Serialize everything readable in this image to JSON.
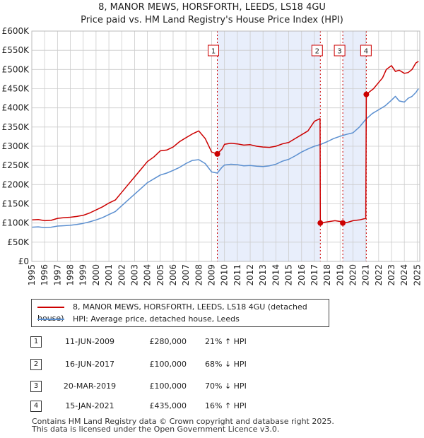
{
  "header": {
    "title_line1": "8, MANOR MEWS, HORSFORTH, LEEDS, LS18 4GU",
    "title_line2": "Price paid vs. HM Land Registry's House Price Index (HPI)"
  },
  "colors": {
    "property": "#cc0000",
    "hpi": "#5b8fd0",
    "shade": "#e8eefb"
  },
  "chart_data": {
    "type": "line",
    "xlim": [
      1995,
      2025.2
    ],
    "ylim": [
      0,
      600000
    ],
    "x_ticks": [
      "1995",
      "1996",
      "1997",
      "1998",
      "1999",
      "2000",
      "2001",
      "2002",
      "2003",
      "2004",
      "2005",
      "2006",
      "2007",
      "2008",
      "2009",
      "2010",
      "2011",
      "2012",
      "2013",
      "2014",
      "2015",
      "2016",
      "2017",
      "2018",
      "2019",
      "2020",
      "2021",
      "2022",
      "2023",
      "2024",
      "2025"
    ],
    "y_ticks": [
      {
        "value": 0,
        "label": "£0"
      },
      {
        "value": 50000,
        "label": "£50K"
      },
      {
        "value": 100000,
        "label": "£100K"
      },
      {
        "value": 150000,
        "label": "£150K"
      },
      {
        "value": 200000,
        "label": "£200K"
      },
      {
        "value": 250000,
        "label": "£250K"
      },
      {
        "value": 300000,
        "label": "£300K"
      },
      {
        "value": 350000,
        "label": "£350K"
      },
      {
        "value": 400000,
        "label": "£400K"
      },
      {
        "value": 450000,
        "label": "£450K"
      },
      {
        "value": 500000,
        "label": "£500K"
      },
      {
        "value": 550000,
        "label": "£550K"
      },
      {
        "value": 600000,
        "label": "£600K"
      }
    ],
    "shaded_spans": [
      [
        2009.44,
        2017.46
      ],
      [
        2019.21,
        2021.04
      ]
    ],
    "series": [
      {
        "name": "8, MANOR MEWS, HORSFORTH, LEEDS, LS18 4GU (detached house)",
        "color": "#cc0000",
        "x": [
          1995.0,
          1995.5,
          1996.0,
          1996.5,
          1997.0,
          1997.5,
          1998.0,
          1998.5,
          1999.0,
          1999.5,
          2000.0,
          2000.5,
          2001.0,
          2001.5,
          2002.0,
          2002.5,
          2003.0,
          2003.5,
          2004.0,
          2004.5,
          2005.0,
          2005.5,
          2006.0,
          2006.5,
          2007.0,
          2007.5,
          2008.0,
          2008.5,
          2009.0,
          2009.44,
          2009.8,
          2010.0,
          2010.5,
          2011.0,
          2011.5,
          2012.0,
          2012.5,
          2013.0,
          2013.5,
          2014.0,
          2014.5,
          2015.0,
          2015.5,
          2016.0,
          2016.5,
          2017.0,
          2017.44,
          2017.46,
          2017.8,
          2018.2,
          2018.6,
          2019.0,
          2019.21,
          2019.6,
          2020.0,
          2020.5,
          2021.0,
          2021.04,
          2021.3,
          2021.6,
          2022.0,
          2022.3,
          2022.6,
          2023.0,
          2023.3,
          2023.6,
          2024.0,
          2024.3,
          2024.6,
          2024.9,
          2025.1
        ],
        "y": [
          108000,
          109000,
          106000,
          107000,
          112000,
          114000,
          115000,
          117000,
          120000,
          126000,
          134000,
          142000,
          152000,
          160000,
          180000,
          200000,
          220000,
          240000,
          260000,
          272000,
          288000,
          290000,
          298000,
          312000,
          322000,
          332000,
          340000,
          320000,
          285000,
          280000,
          292000,
          305000,
          308000,
          306000,
          303000,
          304000,
          300000,
          298000,
          297000,
          300000,
          306000,
          310000,
          320000,
          330000,
          340000,
          365000,
          372000,
          100000,
          102000,
          104000,
          106000,
          104000,
          100000,
          102000,
          106000,
          108000,
          112000,
          435000,
          442000,
          450000,
          466000,
          478000,
          500000,
          510000,
          495000,
          498000,
          490000,
          492000,
          500000,
          517000,
          521000
        ]
      },
      {
        "name": "HPI: Average price, detached house, Leeds",
        "color": "#5b8fd0",
        "x": [
          1995.0,
          1995.5,
          1996.0,
          1996.5,
          1997.0,
          1997.5,
          1998.0,
          1998.5,
          1999.0,
          1999.5,
          2000.0,
          2000.5,
          2001.0,
          2001.5,
          2002.0,
          2002.5,
          2003.0,
          2003.5,
          2004.0,
          2004.5,
          2005.0,
          2005.5,
          2006.0,
          2006.5,
          2007.0,
          2007.5,
          2008.0,
          2008.5,
          2009.0,
          2009.44,
          2009.8,
          2010.0,
          2010.5,
          2011.0,
          2011.5,
          2012.0,
          2012.5,
          2013.0,
          2013.5,
          2014.0,
          2014.5,
          2015.0,
          2015.5,
          2016.0,
          2016.5,
          2017.0,
          2017.5,
          2018.0,
          2018.5,
          2019.0,
          2019.5,
          2020.0,
          2020.5,
          2021.0,
          2021.5,
          2022.0,
          2022.5,
          2023.0,
          2023.3,
          2023.6,
          2024.0,
          2024.3,
          2024.6,
          2024.9,
          2025.1
        ],
        "y": [
          89000,
          90000,
          88000,
          89000,
          92000,
          93000,
          94000,
          96000,
          99000,
          103000,
          108000,
          114000,
          122000,
          130000,
          145000,
          160000,
          175000,
          190000,
          205000,
          215000,
          225000,
          230000,
          237000,
          245000,
          255000,
          263000,
          265000,
          255000,
          233000,
          230000,
          245000,
          251000,
          253000,
          252000,
          249000,
          250000,
          248000,
          247000,
          249000,
          253000,
          261000,
          266000,
          275000,
          285000,
          293000,
          300000,
          305000,
          312000,
          320000,
          326000,
          331000,
          335000,
          350000,
          370000,
          385000,
          395000,
          405000,
          420000,
          430000,
          418000,
          415000,
          425000,
          430000,
          440000,
          450000
        ]
      }
    ],
    "sales": [
      {
        "n": "1",
        "x": 2009.44,
        "y": 280000
      },
      {
        "n": "2",
        "x": 2017.46,
        "y": 100000
      },
      {
        "n": "3",
        "x": 2019.21,
        "y": 100000
      },
      {
        "n": "4",
        "x": 2021.04,
        "y": 435000
      }
    ]
  },
  "legend": {
    "property_label": "8, MANOR MEWS, HORSFORTH, LEEDS, LS18 4GU (detached house)",
    "hpi_label": "HPI: Average price, detached house, Leeds"
  },
  "sales_table": [
    {
      "num": "1",
      "date": "11-JUN-2009",
      "price": "£280,000",
      "hpi": "21% ↑ HPI"
    },
    {
      "num": "2",
      "date": "16-JUN-2017",
      "price": "£100,000",
      "hpi": "68% ↓ HPI"
    },
    {
      "num": "3",
      "date": "20-MAR-2019",
      "price": "£100,000",
      "hpi": "70% ↓ HPI"
    },
    {
      "num": "4",
      "date": "15-JAN-2021",
      "price": "£435,000",
      "hpi": "16% ↑ HPI"
    }
  ],
  "footer": {
    "line1": "Contains HM Land Registry data © Crown copyright and database right 2025.",
    "line2": "This data is licensed under the Open Government Licence v3.0."
  }
}
